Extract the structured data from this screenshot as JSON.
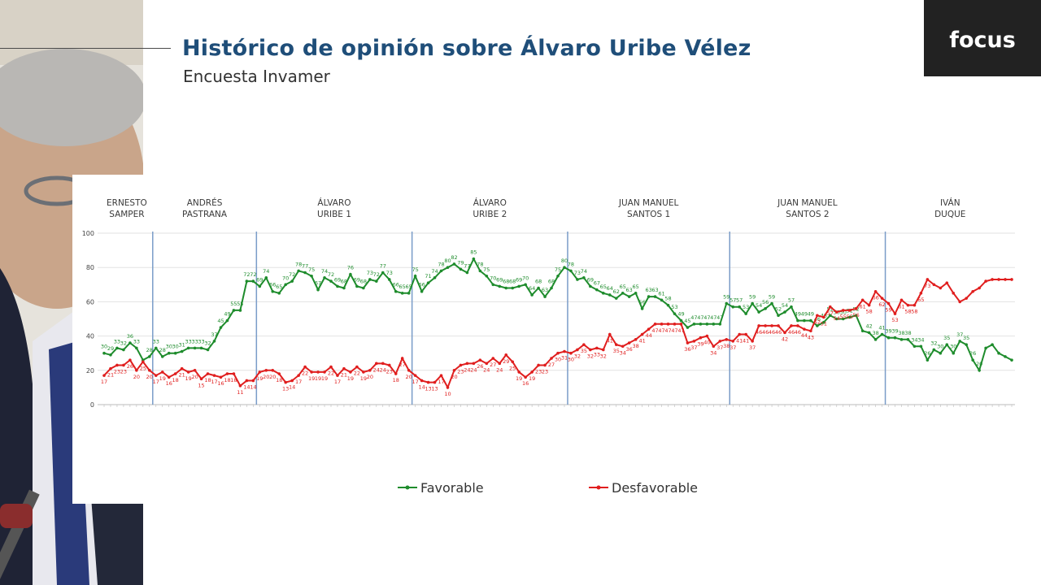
{
  "header": {
    "title": "Histórico de opinión sobre Álvaro Uribe Vélez",
    "subtitle": "Encuesta Invamer"
  },
  "logo": {
    "text": "focus"
  },
  "photo": {
    "icon": "portrait-photo"
  },
  "colors": {
    "title": "#1f4e79",
    "favorable": "#1e8c2c",
    "desfavorable": "#e01e1e",
    "divider": "#7a9cc8",
    "logo_bg": "#222222"
  },
  "chart_data": {
    "type": "line",
    "title": "",
    "xlabel": "",
    "ylabel": "",
    "ylim": [
      0,
      100
    ],
    "yticks": [
      0,
      20,
      40,
      60,
      80,
      100
    ],
    "grid": true,
    "legend": "bottom",
    "periods": [
      {
        "label": [
          "ERNESTO",
          "SAMPER"
        ],
        "start": 0,
        "end": 7
      },
      {
        "label": [
          "ANDRÉS",
          "PASTRANA"
        ],
        "start": 8,
        "end": 23
      },
      {
        "label": [
          "ÁLVARO",
          "URIBE 1"
        ],
        "start": 24,
        "end": 47
      },
      {
        "label": [
          "ÁLVARO",
          "URIBE 2"
        ],
        "start": 48,
        "end": 71
      },
      {
        "label": [
          "JUAN MANUEL",
          "SANTOS 1"
        ],
        "start": 72,
        "end": 96
      },
      {
        "label": [
          "JUAN MANUEL",
          "SANTOS 2"
        ],
        "start": 97,
        "end": 120
      },
      {
        "label": [
          "IVÁN",
          "DUQUE"
        ],
        "start": 121,
        "end": 140
      }
    ],
    "series": [
      {
        "name": "Favorable",
        "values": [
          30,
          29,
          33,
          32,
          36,
          33,
          26,
          28,
          33,
          28,
          30,
          30,
          31,
          33,
          33,
          33,
          32,
          37,
          45,
          49,
          55,
          55,
          72,
          72,
          69,
          74,
          66,
          65,
          70,
          72,
          78,
          77,
          75,
          67,
          74,
          72,
          69,
          68,
          76,
          69,
          68,
          73,
          72,
          77,
          73,
          66,
          65,
          65,
          75,
          66,
          71,
          74,
          78,
          80,
          82,
          79,
          77,
          85,
          78,
          75,
          70,
          69,
          68,
          68,
          69,
          70,
          64,
          68,
          63,
          68,
          75,
          80,
          78,
          73,
          74,
          69,
          67,
          65,
          64,
          62,
          65,
          63,
          65,
          56,
          63,
          63,
          61,
          58,
          53,
          49,
          45,
          47,
          47,
          47,
          47,
          47,
          59,
          57,
          57,
          53,
          59,
          54,
          56,
          59,
          52,
          54,
          57,
          49,
          49,
          49,
          46,
          48,
          52,
          50,
          50,
          51,
          52,
          43,
          42,
          38,
          41,
          39,
          39,
          38,
          38,
          34,
          34,
          26,
          32,
          30,
          35,
          30,
          37,
          35,
          26,
          20,
          33,
          35,
          30,
          28,
          26
        ],
        "labels": [
          30,
          29,
          33,
          32,
          36,
          33,
          null,
          28,
          33,
          28,
          30,
          30,
          31,
          33,
          33,
          33,
          32,
          37,
          45,
          49,
          55,
          55,
          72,
          72,
          69,
          74,
          66,
          65,
          70,
          72,
          78,
          77,
          75,
          67,
          74,
          72,
          69,
          68,
          76,
          69,
          68,
          73,
          72,
          77,
          73,
          66,
          65,
          65,
          75,
          66,
          71,
          74,
          78,
          80,
          82,
          79,
          77,
          85,
          78,
          75,
          70,
          69,
          68,
          68,
          69,
          70,
          64,
          68,
          63,
          68,
          75,
          80,
          78,
          73,
          74,
          69,
          67,
          65,
          64,
          62,
          65,
          63,
          65,
          56,
          63,
          63,
          61,
          58,
          53,
          49,
          45,
          47,
          47,
          47,
          47,
          47,
          59,
          57,
          57,
          53,
          59,
          54,
          56,
          59,
          52,
          54,
          57,
          49,
          49,
          49,
          46,
          48,
          52,
          50,
          50,
          51,
          52,
          null,
          42,
          38,
          41,
          39,
          39,
          38,
          38,
          34,
          34,
          26,
          32,
          30,
          35,
          30,
          37,
          35,
          26,
          20,
          null,
          null,
          null,
          null,
          null
        ]
      },
      {
        "name": "Desfavorable",
        "values": [
          17,
          21,
          23,
          23,
          26,
          20,
          25,
          20,
          17,
          19,
          16,
          18,
          21,
          19,
          20,
          15,
          18,
          17,
          16,
          18,
          18,
          11,
          14,
          14,
          19,
          20,
          20,
          18,
          13,
          14,
          17,
          22,
          19,
          19,
          19,
          22,
          17,
          21,
          19,
          22,
          19,
          20,
          24,
          24,
          23,
          18,
          27,
          20,
          17,
          14,
          13,
          13,
          17,
          10,
          20,
          23,
          24,
          24,
          26,
          24,
          27,
          24,
          29,
          25,
          19,
          16,
          19,
          23,
          23,
          27,
          30,
          31,
          30,
          32,
          35,
          32,
          33,
          32,
          41,
          35,
          34,
          36,
          38,
          41,
          44,
          47,
          47,
          47,
          47,
          47,
          36,
          37,
          39,
          40,
          34,
          37,
          38,
          37,
          41,
          41,
          37,
          46,
          46,
          46,
          46,
          42,
          46,
          46,
          44,
          43,
          52,
          51,
          57,
          54,
          55,
          55,
          56,
          61,
          58,
          66,
          62,
          59,
          53,
          61,
          58,
          58,
          65,
          73,
          70,
          68,
          71,
          65,
          60,
          62,
          66,
          68,
          72,
          73,
          73,
          73,
          73
        ],
        "labels": [
          17,
          21,
          23,
          23,
          26,
          20,
          25,
          20,
          17,
          19,
          16,
          18,
          21,
          19,
          20,
          15,
          18,
          17,
          16,
          18,
          18,
          11,
          14,
          14,
          19,
          20,
          20,
          18,
          13,
          14,
          17,
          22,
          19,
          19,
          19,
          22,
          17,
          21,
          19,
          22,
          19,
          20,
          24,
          24,
          23,
          18,
          27,
          20,
          17,
          14,
          13,
          13,
          17,
          10,
          20,
          23,
          24,
          24,
          26,
          24,
          27,
          24,
          29,
          25,
          19,
          16,
          19,
          23,
          23,
          27,
          30,
          31,
          30,
          32,
          35,
          32,
          33,
          32,
          41,
          35,
          34,
          36,
          38,
          41,
          44,
          47,
          47,
          47,
          47,
          47,
          36,
          37,
          39,
          40,
          34,
          37,
          38,
          37,
          41,
          41,
          37,
          46,
          46,
          46,
          46,
          42,
          46,
          46,
          44,
          43,
          52,
          51,
          57,
          54,
          55,
          55,
          56,
          61,
          58,
          66,
          62,
          59,
          53,
          61,
          58,
          58,
          65,
          73,
          null,
          null,
          null,
          null,
          null,
          null,
          null,
          null,
          null,
          null,
          null,
          null,
          null
        ]
      }
    ],
    "legend_entries": [
      "Favorable",
      "Desfavorable"
    ]
  }
}
